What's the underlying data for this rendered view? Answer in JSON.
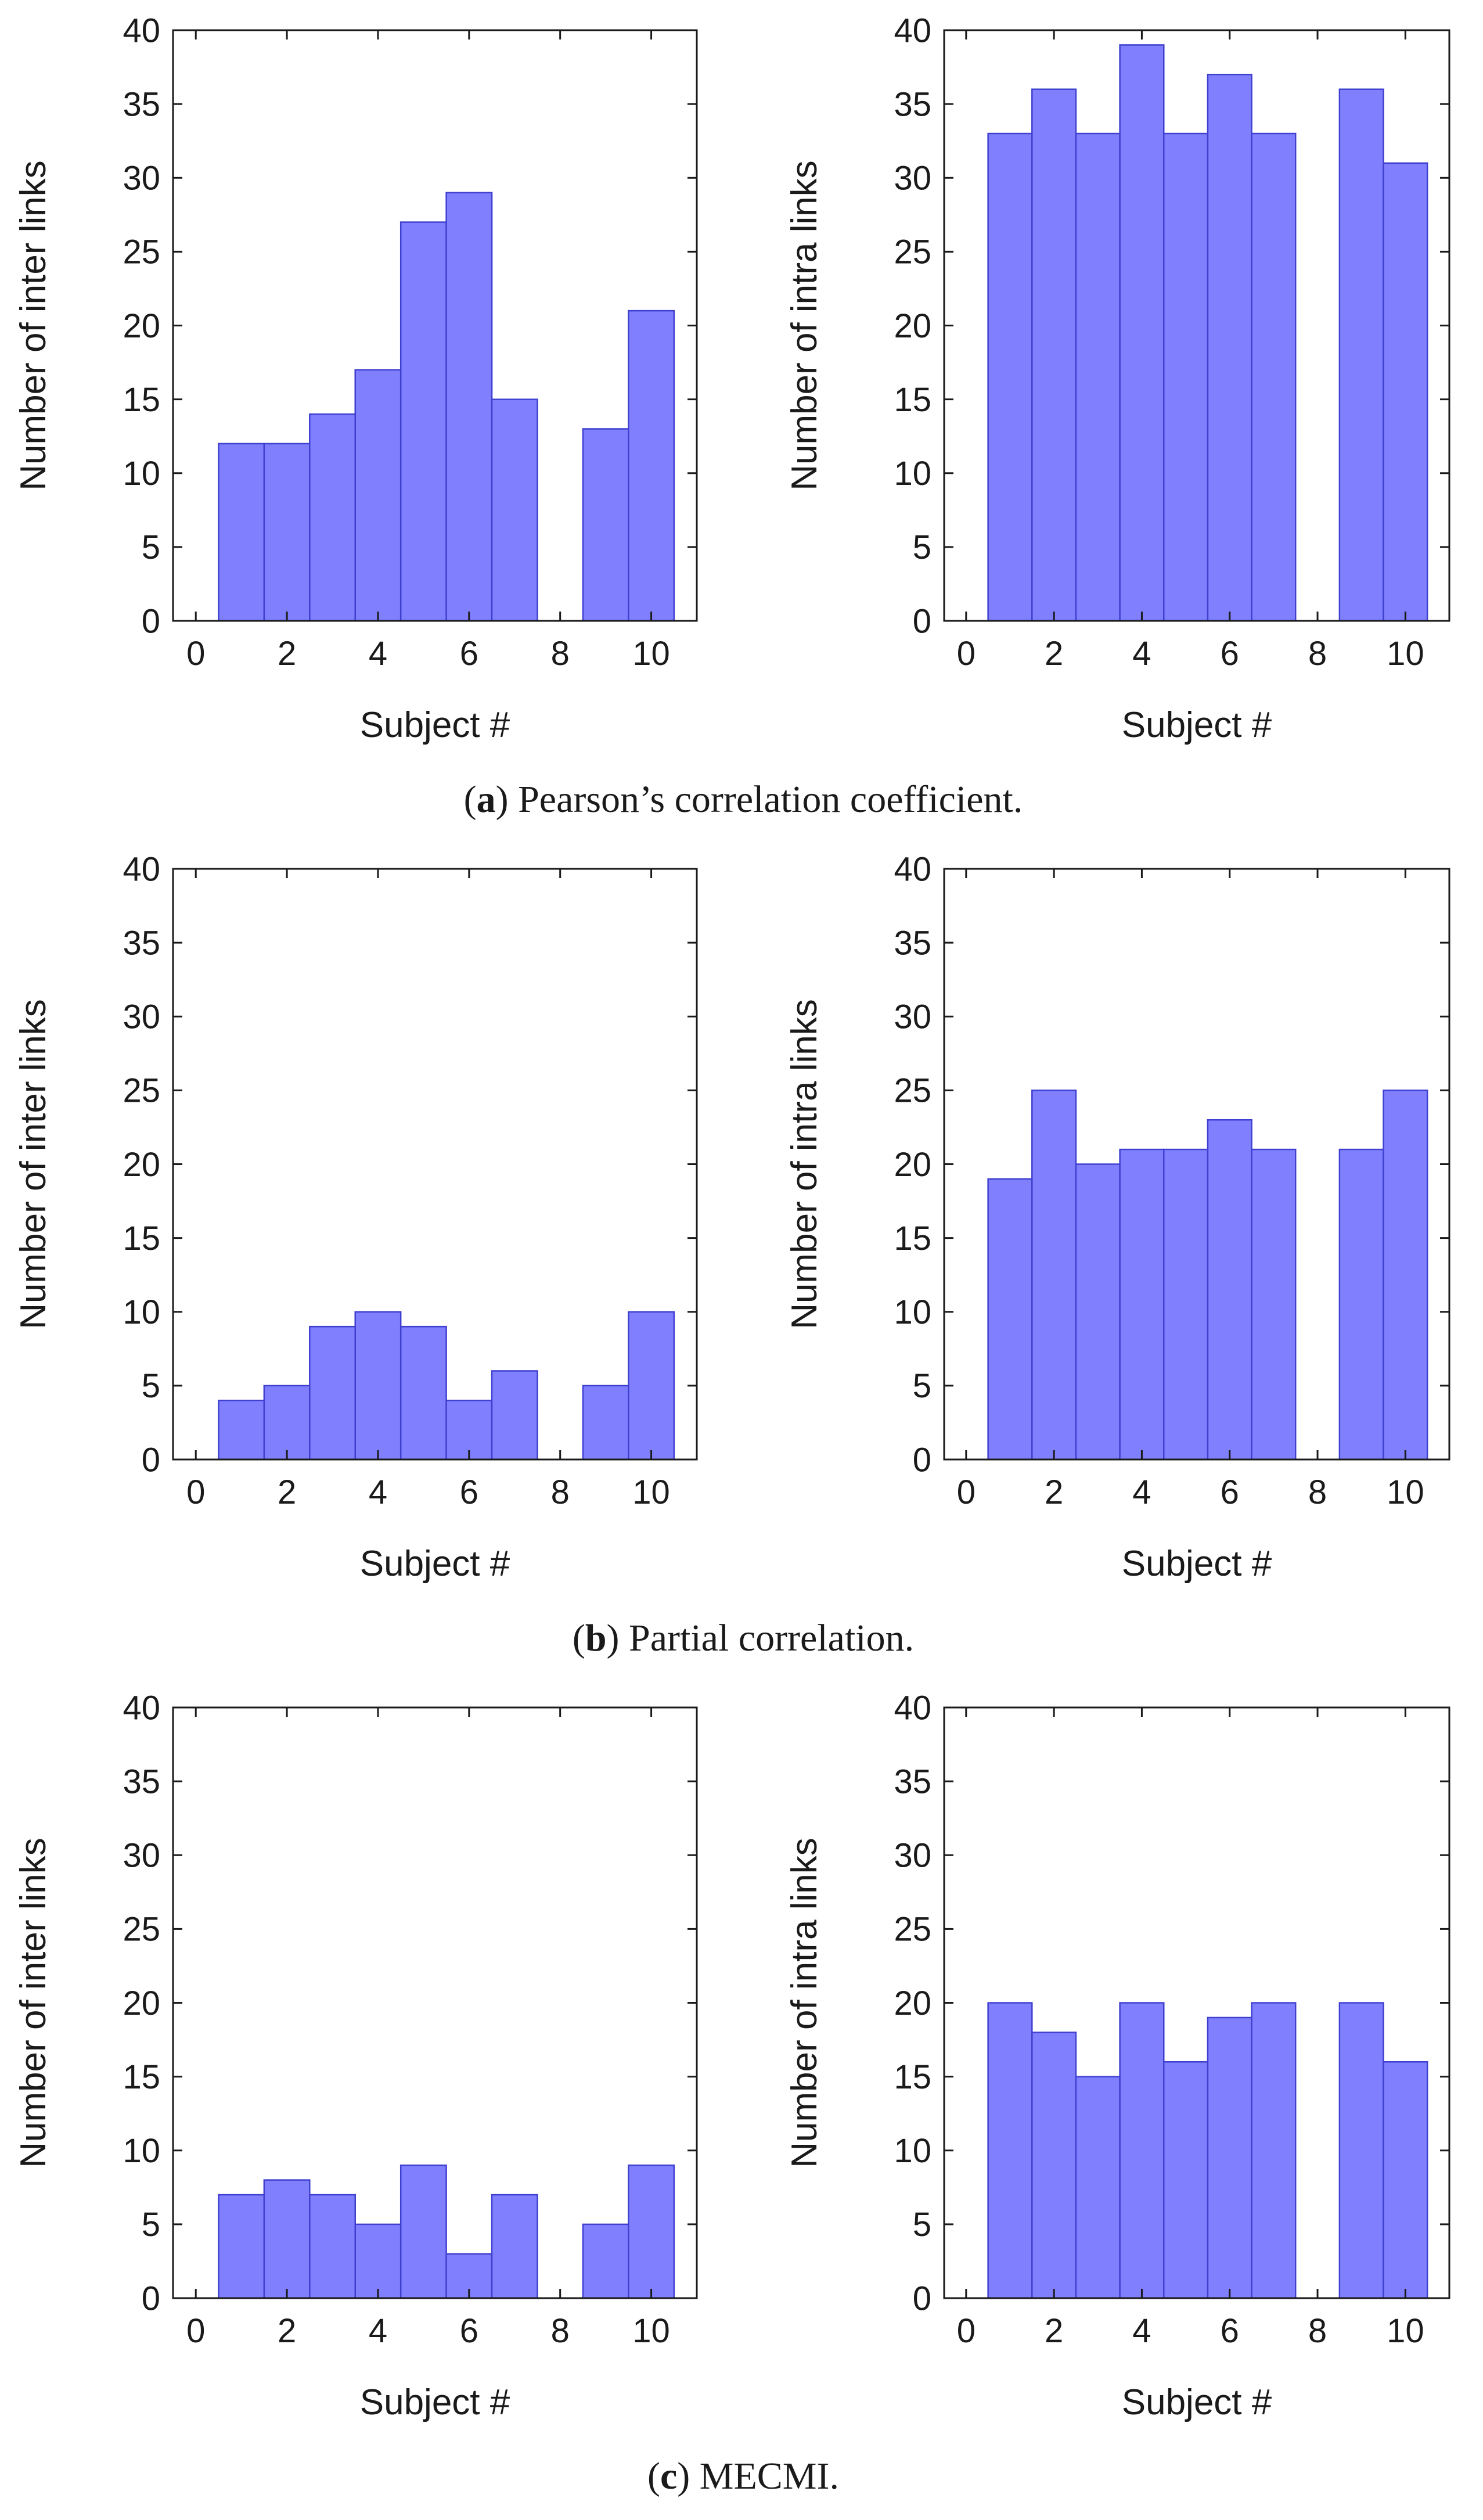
{
  "colors": {
    "bar_fill": "#8080ff",
    "bar_stroke": "#4040d0",
    "axis": "#1a1a1a"
  },
  "panels": [
    {
      "label": "a",
      "caption": "Pearson’s correlation coefficient.",
      "charts": [
        {
          "type": "bar",
          "ylabel": "Number of inter links",
          "xlabel": "Subject #",
          "x": [
            1,
            2,
            3,
            4,
            5,
            6,
            7,
            8,
            9,
            10
          ],
          "values": [
            12,
            12,
            14,
            17,
            27,
            29,
            15,
            0,
            13,
            21
          ],
          "xlim": [
            -0.5,
            11
          ],
          "ylim": [
            0,
            40
          ],
          "xticks": [
            "0",
            "2",
            "4",
            "6",
            "8",
            "10"
          ],
          "yticks": [
            "0",
            "5",
            "10",
            "15",
            "20",
            "25",
            "30",
            "35",
            "40"
          ]
        },
        {
          "type": "bar",
          "ylabel": "Number of intra links",
          "xlabel": "Subject #",
          "x": [
            1,
            2,
            3,
            4,
            5,
            6,
            7,
            8,
            9,
            10
          ],
          "values": [
            33,
            36,
            33,
            39,
            33,
            37,
            33,
            0,
            36,
            31
          ],
          "xlim": [
            -0.5,
            11
          ],
          "ylim": [
            0,
            40
          ],
          "xticks": [
            "0",
            "2",
            "4",
            "6",
            "8",
            "10"
          ],
          "yticks": [
            "0",
            "5",
            "10",
            "15",
            "20",
            "25",
            "30",
            "35",
            "40"
          ]
        }
      ]
    },
    {
      "label": "b",
      "caption": "Partial correlation.",
      "charts": [
        {
          "type": "bar",
          "ylabel": "Number of inter links",
          "xlabel": "Subject #",
          "x": [
            1,
            2,
            3,
            4,
            5,
            6,
            7,
            8,
            9,
            10
          ],
          "values": [
            4,
            5,
            9,
            10,
            9,
            4,
            6,
            0,
            5,
            10
          ],
          "xlim": [
            -0.5,
            11
          ],
          "ylim": [
            0,
            40
          ],
          "xticks": [
            "0",
            "2",
            "4",
            "6",
            "8",
            "10"
          ],
          "yticks": [
            "0",
            "5",
            "10",
            "15",
            "20",
            "25",
            "30",
            "35",
            "40"
          ]
        },
        {
          "type": "bar",
          "ylabel": "Number of intra links",
          "xlabel": "Subject #",
          "x": [
            1,
            2,
            3,
            4,
            5,
            6,
            7,
            8,
            9,
            10
          ],
          "values": [
            19,
            25,
            20,
            21,
            21,
            23,
            21,
            0,
            21,
            25
          ],
          "xlim": [
            -0.5,
            11
          ],
          "ylim": [
            0,
            40
          ],
          "xticks": [
            "0",
            "2",
            "4",
            "6",
            "8",
            "10"
          ],
          "yticks": [
            "0",
            "5",
            "10",
            "15",
            "20",
            "25",
            "30",
            "35",
            "40"
          ]
        }
      ]
    },
    {
      "label": "c",
      "caption": "MECMI.",
      "charts": [
        {
          "type": "bar",
          "ylabel": "Number of inter links",
          "xlabel": "Subject #",
          "x": [
            1,
            2,
            3,
            4,
            5,
            6,
            7,
            8,
            9,
            10
          ],
          "values": [
            7,
            8,
            7,
            5,
            9,
            3,
            7,
            0,
            5,
            9
          ],
          "xlim": [
            -0.5,
            11
          ],
          "ylim": [
            0,
            40
          ],
          "xticks": [
            "0",
            "2",
            "4",
            "6",
            "8",
            "10"
          ],
          "yticks": [
            "0",
            "5",
            "10",
            "15",
            "20",
            "25",
            "30",
            "35",
            "40"
          ]
        },
        {
          "type": "bar",
          "ylabel": "Number of intra links",
          "xlabel": "Subject #",
          "x": [
            1,
            2,
            3,
            4,
            5,
            6,
            7,
            8,
            9,
            10
          ],
          "values": [
            20,
            18,
            15,
            20,
            16,
            19,
            20,
            0,
            20,
            16
          ],
          "xlim": [
            -0.5,
            11
          ],
          "ylim": [
            0,
            40
          ],
          "xticks": [
            "0",
            "2",
            "4",
            "6",
            "8",
            "10"
          ],
          "yticks": [
            "0",
            "5",
            "10",
            "15",
            "20",
            "25",
            "30",
            "35",
            "40"
          ]
        }
      ]
    }
  ],
  "chart_data": [
    {
      "type": "bar",
      "panel": "a",
      "title": "Pearson’s correlation coefficient.",
      "xlabel": "Subject #",
      "ylabel": "Number of inter links",
      "x": [
        1,
        2,
        3,
        4,
        5,
        6,
        7,
        8,
        9,
        10
      ],
      "values": [
        12,
        12,
        14,
        17,
        27,
        29,
        15,
        0,
        13,
        21
      ],
      "ylim": [
        0,
        40
      ]
    },
    {
      "type": "bar",
      "panel": "a",
      "title": "Pearson’s correlation coefficient.",
      "xlabel": "Subject #",
      "ylabel": "Number of intra links",
      "x": [
        1,
        2,
        3,
        4,
        5,
        6,
        7,
        8,
        9,
        10
      ],
      "values": [
        33,
        36,
        33,
        39,
        33,
        37,
        33,
        0,
        36,
        31
      ],
      "ylim": [
        0,
        40
      ]
    },
    {
      "type": "bar",
      "panel": "b",
      "title": "Partial correlation.",
      "xlabel": "Subject #",
      "ylabel": "Number of inter links",
      "x": [
        1,
        2,
        3,
        4,
        5,
        6,
        7,
        8,
        9,
        10
      ],
      "values": [
        4,
        5,
        9,
        10,
        9,
        4,
        6,
        0,
        5,
        10
      ],
      "ylim": [
        0,
        40
      ]
    },
    {
      "type": "bar",
      "panel": "b",
      "title": "Partial correlation.",
      "xlabel": "Subject #",
      "ylabel": "Number of intra links",
      "x": [
        1,
        2,
        3,
        4,
        5,
        6,
        7,
        8,
        9,
        10
      ],
      "values": [
        19,
        25,
        20,
        21,
        21,
        23,
        21,
        0,
        21,
        25
      ],
      "ylim": [
        0,
        40
      ]
    },
    {
      "type": "bar",
      "panel": "c",
      "title": "MECMI.",
      "xlabel": "Subject #",
      "ylabel": "Number of inter links",
      "x": [
        1,
        2,
        3,
        4,
        5,
        6,
        7,
        8,
        9,
        10
      ],
      "values": [
        7,
        8,
        7,
        5,
        9,
        3,
        7,
        0,
        5,
        9
      ],
      "ylim": [
        0,
        40
      ]
    },
    {
      "type": "bar",
      "panel": "c",
      "title": "MECMI.",
      "xlabel": "Subject #",
      "ylabel": "Number of intra links",
      "x": [
        1,
        2,
        3,
        4,
        5,
        6,
        7,
        8,
        9,
        10
      ],
      "values": [
        20,
        18,
        15,
        20,
        16,
        19,
        20,
        0,
        20,
        16
      ],
      "ylim": [
        0,
        40
      ]
    }
  ]
}
